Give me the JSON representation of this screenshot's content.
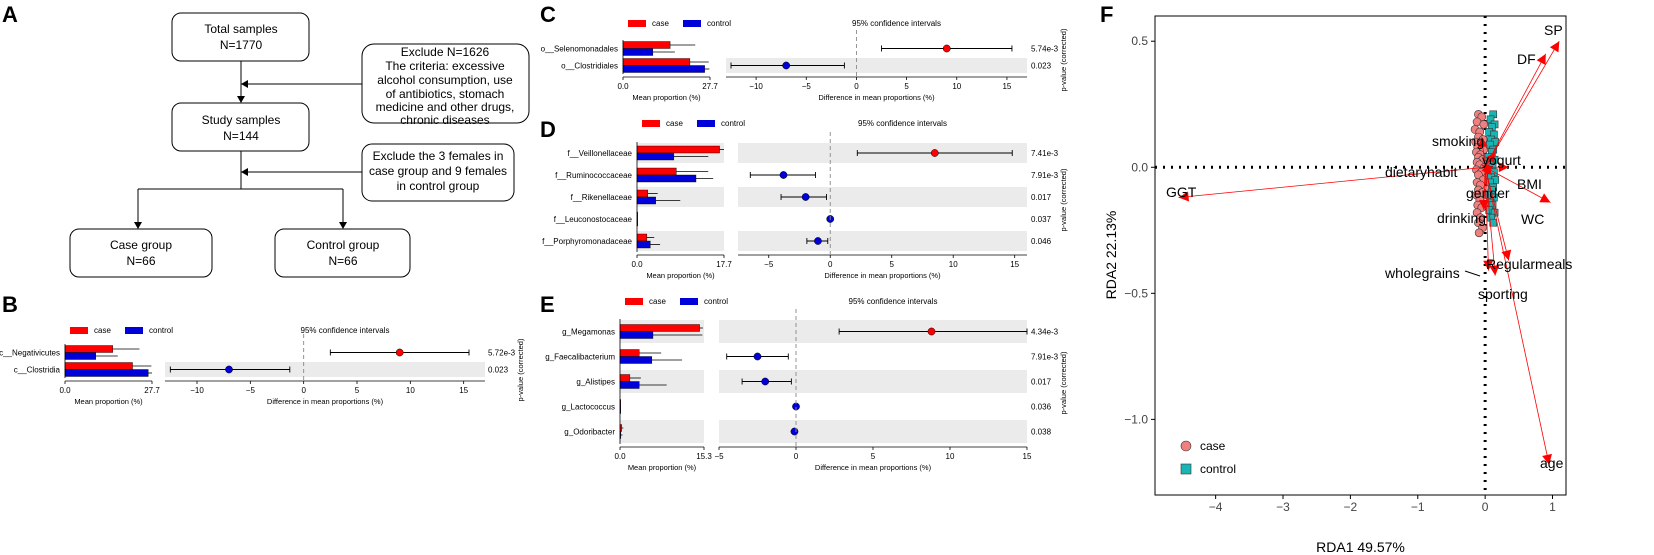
{
  "colors": {
    "case": "#e41a1c",
    "control": "#0000d8",
    "case_fill": "#ff0000",
    "arrow": "#ff0000",
    "stripe": "#ebebeb"
  },
  "panel_labels": {
    "a": "A",
    "b": "B",
    "c": "C",
    "d": "D",
    "e": "E",
    "f": "F"
  },
  "flowchart": {
    "total": {
      "line1": "Total samples",
      "line2": "N=1770"
    },
    "exclude1": {
      "lines": [
        "Exclude N=1626",
        "The criteria: excessive",
        "alcohol consumption, use",
        "of antibiotics, stomach",
        "medicine and other drugs,",
        "chronic diseases"
      ]
    },
    "study": {
      "line1": "Study samples",
      "line2": "N=144"
    },
    "exclude2": {
      "lines": [
        "Exclude the 3 females in",
        "case group and 9 females",
        "in control group"
      ]
    },
    "case_group": {
      "line1": "Case group",
      "line2": "N=66"
    },
    "control_group": {
      "line1": "Control group",
      "line2": "N=66"
    }
  },
  "common": {
    "legend_case": "case",
    "legend_control": "control",
    "ci_title": "95% confidence intervals",
    "xlabel_mean": "Mean proportion (%)",
    "xlabel_diff": "Difference in mean proportions (%)",
    "pval_label": "p-value (corrected)"
  },
  "chart_data": [
    {
      "panel": "B",
      "type": "bar",
      "categories": [
        "c__Negativicutes",
        "c__Clostridia"
      ],
      "series": [
        {
          "name": "case",
          "values": [
            15.2,
            21.5
          ],
          "err": [
            8.5,
            6.0
          ]
        },
        {
          "name": "control",
          "values": [
            9.8,
            26.5
          ],
          "err": [
            7.0,
            1.5
          ]
        }
      ],
      "prop_ticks": [
        "0.0",
        "27.7"
      ],
      "prop_max": 27.7,
      "diff": [
        9.0,
        -7.0
      ],
      "ci_low": [
        2.5,
        -12.5
      ],
      "ci_high": [
        15.5,
        -1.3
      ],
      "diff_ticks": [
        -10,
        -5,
        0,
        5,
        10,
        15
      ],
      "diff_range": [
        -13,
        17
      ],
      "pvalues": [
        "5.72e-3",
        "0.023"
      ]
    },
    {
      "panel": "C",
      "type": "bar",
      "categories": [
        "o__Selenomonadales",
        "o__Clostridiales"
      ],
      "series": [
        {
          "name": "case",
          "values": [
            15.0,
            21.3
          ],
          "err": [
            8.0,
            6.0
          ]
        },
        {
          "name": "control",
          "values": [
            9.5,
            26.0
          ],
          "err": [
            7.0,
            1.5
          ]
        }
      ],
      "prop_ticks": [
        "0.0",
        "27.7"
      ],
      "prop_max": 27.7,
      "diff": [
        9.0,
        -7.0
      ],
      "ci_low": [
        2.5,
        -12.5
      ],
      "ci_high": [
        15.5,
        -1.2
      ],
      "diff_ticks": [
        -10,
        -5,
        0,
        5,
        10,
        15
      ],
      "diff_range": [
        -13,
        17
      ],
      "pvalues": [
        "5.74e-3",
        "0.023"
      ]
    },
    {
      "panel": "D",
      "type": "bar",
      "categories": [
        "f__Veillonellaceae",
        "f__Ruminococcaceae",
        "f__Rikenellaceae",
        "f__Leuconostocaceae",
        "f__Porphyromonadaceae"
      ],
      "series": [
        {
          "name": "case",
          "values": [
            16.8,
            8.0,
            2.2,
            0.05,
            2.0
          ],
          "err": [
            1.0,
            6.5,
            2.0,
            0.05,
            1.5
          ]
        },
        {
          "name": "control",
          "values": [
            7.5,
            12.0,
            3.8,
            0.02,
            2.7
          ],
          "err": [
            7.0,
            3.5,
            5.0,
            0.02,
            2.0
          ]
        }
      ],
      "prop_ticks": [
        "0.0",
        "17.7"
      ],
      "prop_max": 17.7,
      "diff": [
        8.5,
        -3.8,
        -2.0,
        0.0,
        -1.0
      ],
      "ci_low": [
        2.2,
        -6.5,
        -4.0,
        -0.1,
        -1.9
      ],
      "ci_high": [
        14.8,
        -1.2,
        -0.3,
        0.1,
        -0.2
      ],
      "diff_ticks": [
        -5,
        0,
        5,
        10,
        15
      ],
      "diff_range": [
        -7.5,
        16
      ],
      "pvalues": [
        "7.41e-3",
        "7.91e-3",
        "0.017",
        "0.037",
        "0.046"
      ]
    },
    {
      "panel": "E",
      "type": "bar",
      "categories": [
        "g_Megamonas",
        "g_Faecalibacterium",
        "g_Alistipes",
        "g_Lactococcus",
        "g_Odoribacter"
      ],
      "series": [
        {
          "name": "case",
          "values": [
            14.5,
            3.5,
            1.8,
            0.05,
            0.3
          ],
          "err": [
            0.6,
            4.0,
            2.0,
            0.05,
            0.3
          ]
        },
        {
          "name": "control",
          "values": [
            6.0,
            5.8,
            3.5,
            0.02,
            0.15
          ],
          "err": [
            9.0,
            5.5,
            5.0,
            0.02,
            0.3
          ]
        }
      ],
      "prop_ticks": [
        "0.0",
        "15.3"
      ],
      "prop_max": 15.3,
      "diff": [
        8.8,
        -2.5,
        -2.0,
        0.0,
        -0.1
      ],
      "ci_low": [
        2.8,
        -4.5,
        -3.5,
        -0.1,
        -0.2
      ],
      "ci_high": [
        15.0,
        -0.5,
        -0.3,
        0.1,
        0.05
      ],
      "diff_ticks": [
        -5,
        0,
        5,
        10,
        15
      ],
      "diff_range": [
        -5,
        15
      ],
      "pvalues": [
        "4.34e-3",
        "7.91e-3",
        "0.017",
        "0.036",
        "0.038"
      ]
    },
    {
      "panel": "F",
      "type": "scatter",
      "title": "",
      "xlabel": "RDA1 49.57%",
      "ylabel": "RDA2 22.13%",
      "xlim": [
        -4.9,
        1.2
      ],
      "ylim": [
        -1.3,
        0.6
      ],
      "x_ticks": [
        -4,
        -3,
        -2,
        -1,
        0,
        1
      ],
      "y_ticks": [
        0.5,
        0.0,
        -0.5,
        -1.0
      ],
      "x_tick_labels": [
        "−4",
        "−3",
        "−2",
        "−1",
        "0",
        "1"
      ],
      "y_tick_labels": [
        "0.5",
        "0.0",
        "−0.5",
        "−1.0"
      ],
      "legend": [
        "case",
        "control"
      ],
      "arrows": [
        {
          "label": "SP",
          "x": 1.1,
          "y": 0.5
        },
        {
          "label": "DF",
          "x": 0.9,
          "y": 0.45
        },
        {
          "label": "smoking",
          "x": -0.05,
          "y": 0.12
        },
        {
          "label": "yogurt",
          "x": 0.15,
          "y": 0.06
        },
        {
          "label": "dietaryhabit",
          "x": -0.05,
          "y": 0.01
        },
        {
          "label": "BMI",
          "x": 0.35,
          "y": 0.0
        },
        {
          "label": "gender",
          "x": 0.1,
          "y": -0.03
        },
        {
          "label": "GGT",
          "x": -4.55,
          "y": -0.12
        },
        {
          "label": "WC",
          "x": 0.97,
          "y": -0.14
        },
        {
          "label": "drinking",
          "x": -0.02,
          "y": -0.17
        },
        {
          "label": "Regularmeals",
          "x": 0.35,
          "y": -0.37
        },
        {
          "label": "wholegrains",
          "x": 0.05,
          "y": -0.41
        },
        {
          "label": "sporting",
          "x": 0.15,
          "y": -0.43
        },
        {
          "label": "age",
          "x": 0.95,
          "y": -1.18
        }
      ],
      "case_points": [
        [
          -0.1,
          0.21
        ],
        [
          -0.05,
          0.2
        ],
        [
          -0.12,
          0.18
        ],
        [
          -0.02,
          0.17
        ],
        [
          -0.15,
          0.15
        ],
        [
          -0.08,
          0.14
        ],
        [
          -0.1,
          0.12
        ],
        [
          -0.03,
          0.11
        ],
        [
          -0.14,
          0.1
        ],
        [
          -0.06,
          0.09
        ],
        [
          -0.11,
          0.08
        ],
        [
          -0.02,
          0.07
        ],
        [
          -0.13,
          0.06
        ],
        [
          -0.07,
          0.05
        ],
        [
          -0.1,
          0.04
        ],
        [
          -0.04,
          0.03
        ],
        [
          -0.12,
          0.02
        ],
        [
          -0.08,
          0.01
        ],
        [
          -0.01,
          0.0
        ],
        [
          -0.13,
          -0.01
        ],
        [
          -0.06,
          -0.02
        ],
        [
          -0.1,
          -0.03
        ],
        [
          -0.03,
          -0.05
        ],
        [
          -0.12,
          -0.06
        ],
        [
          -0.07,
          -0.07
        ],
        [
          -0.1,
          -0.09
        ],
        [
          -0.04,
          -0.1
        ],
        [
          -0.13,
          -0.11
        ],
        [
          -0.08,
          -0.13
        ],
        [
          -0.11,
          -0.15
        ],
        [
          -0.05,
          -0.16
        ],
        [
          -0.12,
          -0.18
        ],
        [
          -0.07,
          -0.2
        ],
        [
          -0.1,
          -0.22
        ],
        [
          -0.04,
          -0.24
        ],
        [
          -0.09,
          -0.26
        ]
      ],
      "control_points": [
        [
          0.12,
          0.21
        ],
        [
          0.08,
          0.19
        ],
        [
          0.14,
          0.17
        ],
        [
          0.1,
          0.16
        ],
        [
          0.06,
          0.14
        ],
        [
          0.13,
          0.13
        ],
        [
          0.09,
          0.11
        ],
        [
          0.15,
          0.1
        ],
        [
          0.07,
          0.09
        ],
        [
          0.12,
          0.07
        ],
        [
          0.1,
          0.06
        ],
        [
          0.05,
          0.04
        ],
        [
          0.14,
          0.03
        ],
        [
          0.08,
          0.02
        ],
        [
          0.11,
          0.0
        ],
        [
          0.06,
          -0.01
        ],
        [
          0.13,
          -0.02
        ],
        [
          0.09,
          -0.04
        ],
        [
          0.15,
          -0.05
        ],
        [
          0.07,
          -0.06
        ],
        [
          0.12,
          -0.08
        ],
        [
          0.1,
          -0.09
        ],
        [
          0.05,
          -0.11
        ],
        [
          0.13,
          -0.12
        ],
        [
          0.08,
          -0.14
        ],
        [
          0.11,
          -0.15
        ],
        [
          0.06,
          -0.17
        ],
        [
          0.14,
          -0.18
        ],
        [
          0.09,
          -0.2
        ],
        [
          0.12,
          -0.22
        ]
      ]
    }
  ]
}
